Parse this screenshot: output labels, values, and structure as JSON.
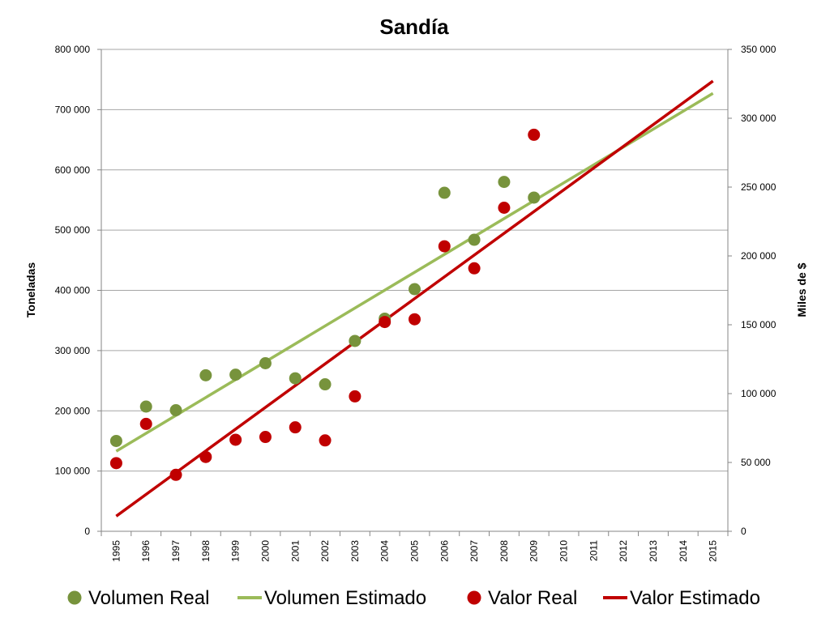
{
  "chart_data": {
    "type": "scatter",
    "title": "Sandía",
    "xlabel": "",
    "ylabel": "Toneladas",
    "y2label": "Miles de $",
    "x_categories": [
      "1995",
      "1996",
      "1997",
      "1998",
      "1999",
      "2000",
      "2001",
      "2002",
      "2003",
      "2004",
      "2005",
      "2006",
      "2007",
      "2008",
      "2009",
      "2010",
      "2011",
      "2012",
      "2013",
      "2014",
      "2015"
    ],
    "ylim": [
      0,
      800000
    ],
    "y_ticks": [
      0,
      100000,
      200000,
      300000,
      400000,
      500000,
      600000,
      700000,
      800000
    ],
    "y_tick_labels": [
      "0",
      "100 000",
      "200 000",
      "300 000",
      "400 000",
      "500 000",
      "600 000",
      "700 000",
      "800 000"
    ],
    "y2lim": [
      0,
      350000
    ],
    "y2_ticks": [
      0,
      50000,
      100000,
      150000,
      200000,
      250000,
      300000,
      350000
    ],
    "y2_tick_labels": [
      "0",
      "50 000",
      "100 000",
      "150 000",
      "200 000",
      "250 000",
      "300 000",
      "350 000"
    ],
    "grid": true,
    "legend_position": "bottom",
    "series": [
      {
        "name": "Volumen Real",
        "kind": "points",
        "axis": "left",
        "color": "#77933c",
        "x": [
          "1995",
          "1996",
          "1997",
          "1998",
          "1999",
          "2000",
          "2001",
          "2002",
          "2003",
          "2004",
          "2005",
          "2006",
          "2007",
          "2008",
          "2009"
        ],
        "values": [
          150000,
          207000,
          201000,
          259000,
          260000,
          279000,
          254000,
          244000,
          316000,
          353000,
          402000,
          562000,
          484000,
          580000,
          554000
        ]
      },
      {
        "name": "Volumen Estimado",
        "kind": "line",
        "axis": "left",
        "color": "#9bbb59",
        "x": [
          "1995",
          "2015"
        ],
        "values": [
          133000,
          727000
        ]
      },
      {
        "name": "Valor Real",
        "kind": "points",
        "axis": "right",
        "color": "#c00000",
        "x": [
          "1995",
          "1996",
          "1997",
          "1998",
          "1999",
          "2000",
          "2001",
          "2002",
          "2003",
          "2004",
          "2005",
          "2006",
          "2007",
          "2008",
          "2009"
        ],
        "values": [
          49500,
          78000,
          41000,
          54000,
          66500,
          68500,
          75500,
          66000,
          98000,
          152000,
          154000,
          207000,
          191000,
          235000,
          288000
        ]
      },
      {
        "name": "Valor Estimado",
        "kind": "line",
        "axis": "right",
        "color": "#c00000",
        "x": [
          "1995",
          "2015"
        ],
        "values": [
          11000,
          327000
        ]
      }
    ]
  }
}
